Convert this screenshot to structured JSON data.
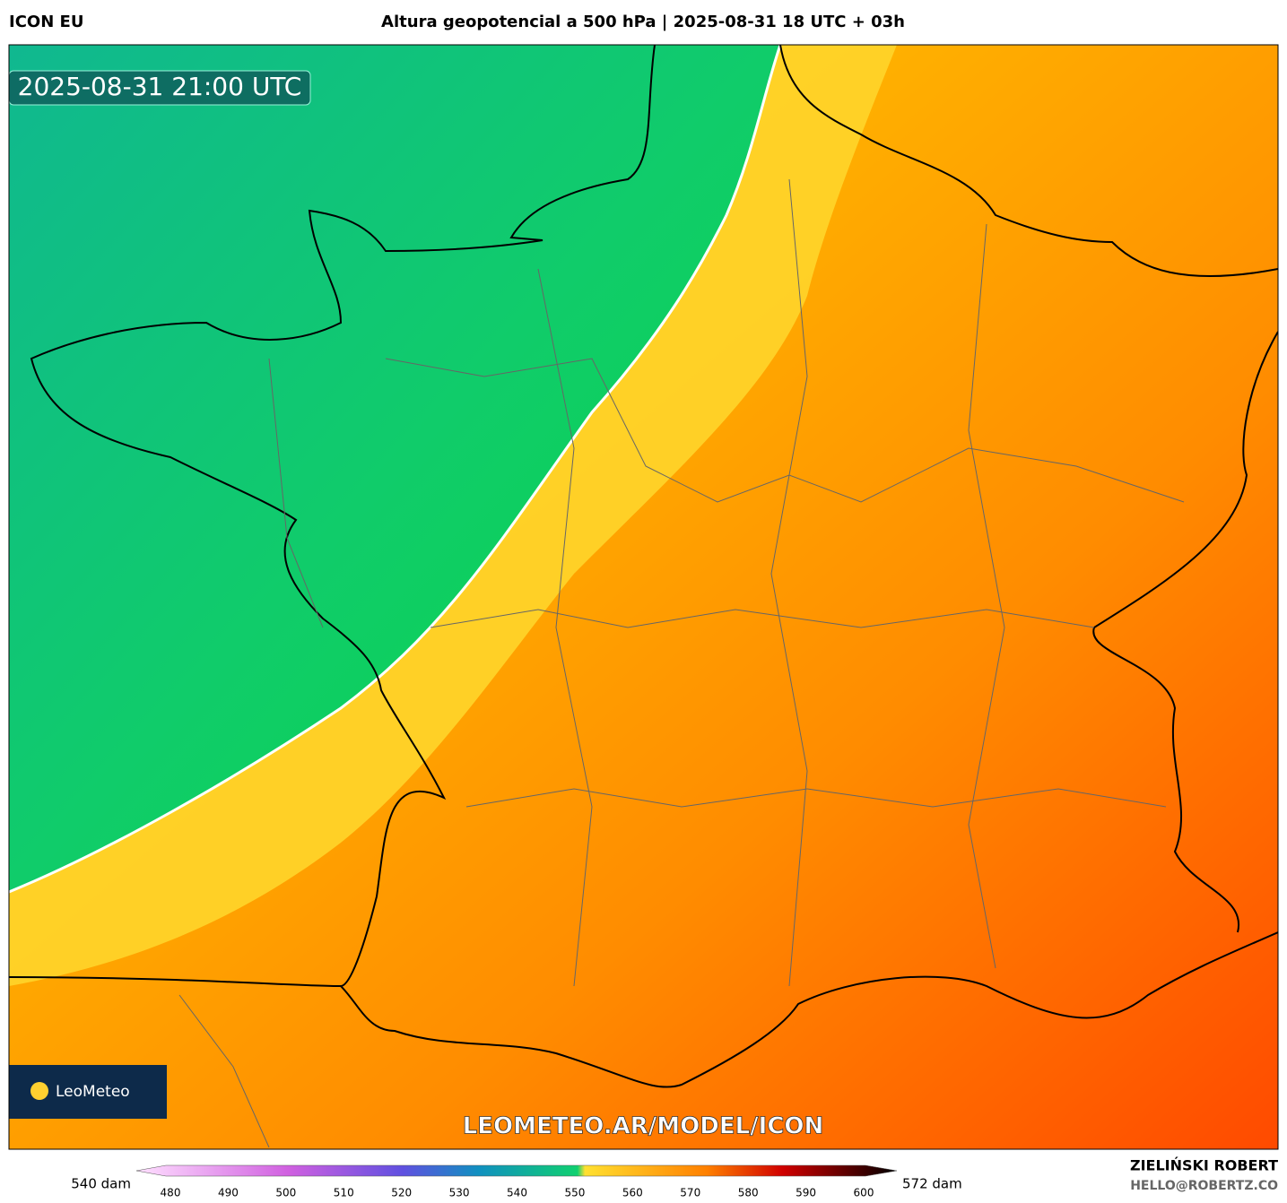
{
  "header": {
    "model": "ICON EU",
    "title": "Altura geopotencial a 500 hPa | 2025-08-31 18 UTC + 03h"
  },
  "map": {
    "timestamp": "2025-08-31 21:00 UTC",
    "watermark": "LEOMETEO.AR/MODEL/ICON",
    "logo": "LeoMeteo"
  },
  "colorbar": {
    "left_label": "540 dam",
    "right_label": "572 dam",
    "ticks": [
      "480",
      "490",
      "500",
      "510",
      "520",
      "530",
      "540",
      "550",
      "560",
      "570",
      "580",
      "590",
      "600"
    ]
  },
  "credit": {
    "name": "ZIELIŃSKI ROBERT",
    "email": "HELLO@ROBERTZ.CO"
  }
}
